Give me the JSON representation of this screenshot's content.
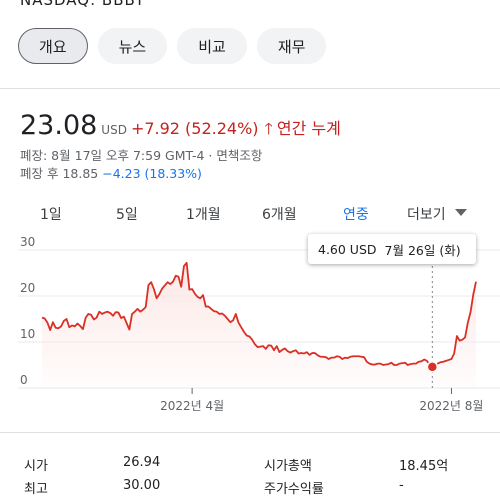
{
  "header": {
    "ticker": "NASDAQ: BBBY"
  },
  "tabs": [
    {
      "label": "개요",
      "active": true
    },
    {
      "label": "뉴스",
      "active": false
    },
    {
      "label": "비교",
      "active": false
    },
    {
      "label": "재무",
      "active": false
    }
  ],
  "quote": {
    "price": "23.08",
    "currency": "USD",
    "change": "+7.92 (52.24%)",
    "arrow_icon": "arrow-up-icon",
    "period": "연간 누계",
    "close_info": "폐장: 8월 17일 오후 7:59 GMT-4 · 면책조항",
    "after_hours_label": "폐장 후 18.85",
    "after_hours_change": "−4.23 (18.33%)"
  },
  "ranges": [
    {
      "label": "1일",
      "active": false
    },
    {
      "label": "5일",
      "active": false
    },
    {
      "label": "1개월",
      "active": false
    },
    {
      "label": "6개월",
      "active": false
    },
    {
      "label": "연중",
      "active": true
    },
    {
      "label": "더보기",
      "active": false
    }
  ],
  "tooltip": {
    "price": "4.60 USD",
    "date": "7월 26일 (화)"
  },
  "chart_data": {
    "type": "area",
    "ylim": [
      0,
      30
    ],
    "yticks": [
      0,
      10,
      20,
      30
    ],
    "xticks": [
      {
        "label": "2022년 4월",
        "index": 55
      },
      {
        "label": "2022년 8월",
        "index": 150
      }
    ],
    "grid": true,
    "line_color": "#d93025",
    "highlight_index": 143,
    "series": [
      {
        "values": [
          15.3,
          15.1,
          14.2,
          12.6,
          14.3,
          13.1,
          13.0,
          13.4,
          14.6,
          15.0,
          13.2,
          13.6,
          13.4,
          14.0,
          13.5,
          12.8,
          15.3,
          16.1,
          15.9,
          14.9,
          15.3,
          16.6,
          16.1,
          16.4,
          16.6,
          16.3,
          15.7,
          16.5,
          16.4,
          15.2,
          15.5,
          14.1,
          12.7,
          16.1,
          16.6,
          17.2,
          16.6,
          17.0,
          17.6,
          22.4,
          23.0,
          21.5,
          19.5,
          20.4,
          21.6,
          22.3,
          23.0,
          22.6,
          23.1,
          24.4,
          24.2,
          22.0,
          26.5,
          27.2,
          21.4,
          21.5,
          20.5,
          19.8,
          19.5,
          20.2,
          17.7,
          17.7,
          17.2,
          16.7,
          16.6,
          16.1,
          16.2,
          15.7,
          15.0,
          14.3,
          14.7,
          16.1,
          14.2,
          13.2,
          12.2,
          11.4,
          11.2,
          10.5,
          9.5,
          8.9,
          9.0,
          9.1,
          8.5,
          9.3,
          9.2,
          8.2,
          9.1,
          7.8,
          8.3,
          8.6,
          8.0,
          7.7,
          8.0,
          8.2,
          7.5,
          7.6,
          7.5,
          7.8,
          7.2,
          7.6,
          7.6,
          7.1,
          6.8,
          6.8,
          6.7,
          6.3,
          6.6,
          6.6,
          6.9,
          6.8,
          6.3,
          6.6,
          6.5,
          6.8,
          6.9,
          6.9,
          6.9,
          6.8,
          6.7,
          5.7,
          5.3,
          5.1,
          5.1,
          5.3,
          5.3,
          5.0,
          5.1,
          5.2,
          5.5,
          5.0,
          5.0,
          5.3,
          5.4,
          5.5,
          5.0,
          5.2,
          5.3,
          5.3,
          5.7,
          5.8,
          6.2,
          5.9,
          5.1,
          4.6,
          5.1,
          5.3,
          5.6,
          5.7,
          5.9,
          6.1,
          6.3,
          7.5,
          11.3,
          10.3,
          10.5,
          11.0,
          14.2,
          16.5,
          20.3,
          23.1
        ]
      }
    ]
  },
  "stats": {
    "left": [
      {
        "label": "시가",
        "value": "26.94"
      },
      {
        "label": "최고",
        "value": "30.00"
      }
    ],
    "right": [
      {
        "label": "시가총액",
        "value": "18.45억"
      },
      {
        "label": "주가수익률",
        "value": "-"
      }
    ]
  }
}
